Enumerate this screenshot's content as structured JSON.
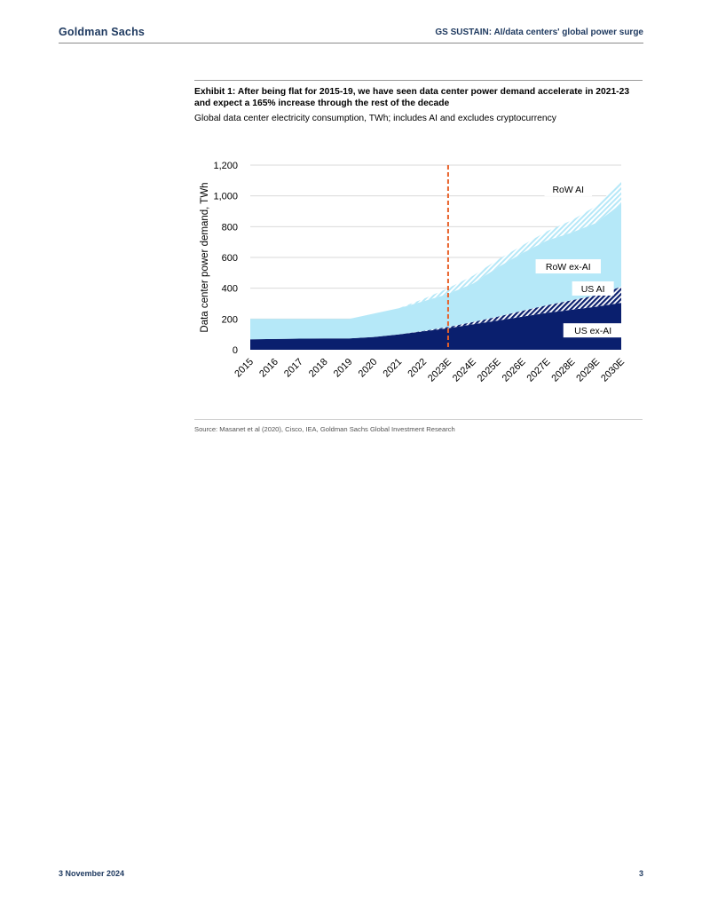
{
  "header": {
    "brand": "Goldman Sachs",
    "title": "GS SUSTAIN: AI/data centers' global power surge"
  },
  "exhibit": {
    "title": "Exhibit 1: After being flat for 2015-19, we have seen data center power demand accelerate in 2021-23 and expect a 165% increase through the rest of the decade",
    "subtitle": "Global data center electricity consumption, TWh; includes AI and excludes cryptocurrency",
    "source": "Source: Masanet et al  (2020), Cisco, IEA, Goldman Sachs Global Investment Research"
  },
  "footer": {
    "date": "3 November 2024",
    "page": "3"
  },
  "chart_data": {
    "type": "area",
    "stacked": true,
    "categories": [
      "2015",
      "2016",
      "2017",
      "2018",
      "2019",
      "2020",
      "2021",
      "2022",
      "2023E",
      "2024E",
      "2025E",
      "2026E",
      "2027E",
      "2028E",
      "2029E",
      "2030E"
    ],
    "series": [
      {
        "name": "US ex-AI",
        "color": "#0a1f6e",
        "pattern": "solid",
        "values": [
          68,
          70,
          72,
          73,
          73,
          83,
          100,
          120,
          140,
          165,
          190,
          215,
          240,
          260,
          280,
          305
        ]
      },
      {
        "name": "US AI",
        "color": "#0a1f6e",
        "pattern": "hatch",
        "values": [
          0,
          0,
          0,
          0,
          0,
          0,
          0,
          3,
          8,
          15,
          25,
          38,
          50,
          62,
          75,
          105
        ]
      },
      {
        "name": "RoW ex-AI",
        "color": "#b5e8f8",
        "pattern": "solid",
        "values": [
          132,
          130,
          128,
          127,
          127,
          152,
          170,
          192,
          215,
          250,
          320,
          375,
          420,
          440,
          470,
          540
        ]
      },
      {
        "name": "RoW AI",
        "color": "#b5e8f8",
        "pattern": "hatch",
        "values": [
          0,
          0,
          0,
          0,
          0,
          0,
          0,
          15,
          37,
          50,
          50,
          50,
          60,
          80,
          110,
          150
        ]
      }
    ],
    "ylabel": "Data center power demand, TWh",
    "ylim": [
      0,
      1200
    ],
    "yticks": [
      0,
      200,
      400,
      600,
      800,
      1000,
      1200
    ],
    "ytick_labels": [
      "0",
      "200",
      "400",
      "600",
      "800",
      "1,000",
      "1,200"
    ],
    "divider": {
      "at": "2023E",
      "style": "dashed",
      "color": "#e8622a"
    },
    "grid": true
  }
}
